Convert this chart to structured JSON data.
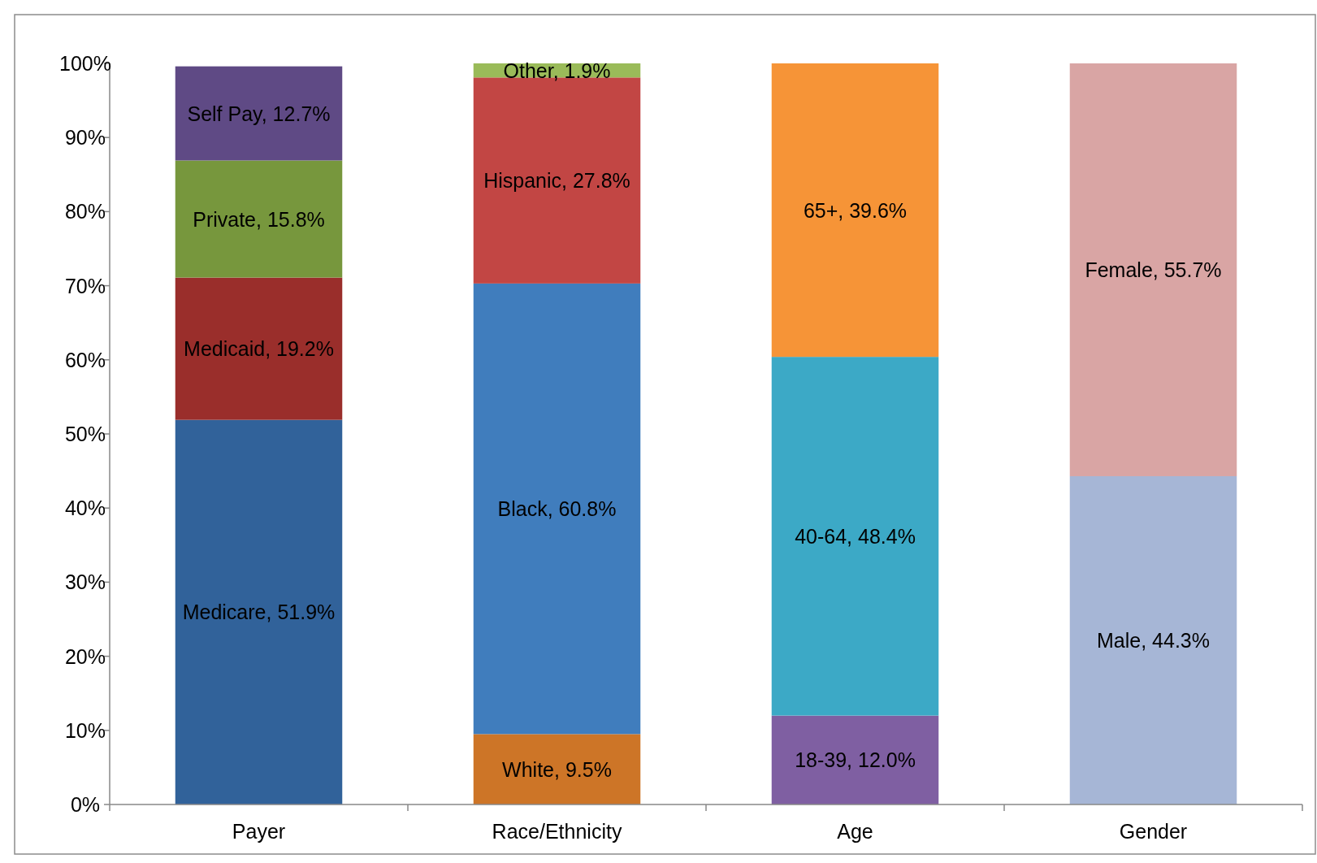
{
  "chart_data": {
    "type": "bar",
    "stacked": true,
    "categories": [
      "Payer",
      "Race/Ethnicity",
      "Age",
      "Gender"
    ],
    "ylim": [
      0,
      100
    ],
    "yticks": [
      {
        "value": 0,
        "label": "0%"
      },
      {
        "value": 10,
        "label": "10%"
      },
      {
        "value": 20,
        "label": "20%"
      },
      {
        "value": 30,
        "label": "30%"
      },
      {
        "value": 40,
        "label": "40%"
      },
      {
        "value": 50,
        "label": "50%"
      },
      {
        "value": 60,
        "label": "60%"
      },
      {
        "value": 70,
        "label": "70%"
      },
      {
        "value": 80,
        "label": "80%"
      },
      {
        "value": 90,
        "label": "90%"
      },
      {
        "value": 100,
        "label": "100%"
      }
    ],
    "grid": false,
    "series": [
      {
        "color": "#31629a",
        "values": [
          51.9,
          null,
          null,
          null
        ],
        "value_labels": [
          "Medicare, 51.9%",
          null,
          null,
          null
        ]
      },
      {
        "color": "#9a2e2b",
        "values": [
          19.2,
          null,
          null,
          null
        ],
        "value_labels": [
          "Medicaid, 19.2%",
          null,
          null,
          null
        ]
      },
      {
        "color": "#77973d",
        "values": [
          15.8,
          null,
          null,
          null
        ],
        "value_labels": [
          "Private, 15.8%",
          null,
          null,
          null
        ]
      },
      {
        "color": "#5f4a85",
        "values": [
          12.7,
          null,
          null,
          null
        ],
        "value_labels": [
          "Self Pay, 12.7%",
          null,
          null,
          null
        ]
      },
      {
        "color": "#cd7527",
        "values": [
          null,
          9.5,
          null,
          null
        ],
        "value_labels": [
          null,
          "White, 9.5%",
          null,
          null
        ]
      },
      {
        "color": "#407dbd",
        "values": [
          null,
          60.8,
          null,
          null
        ],
        "value_labels": [
          null,
          "Black, 60.8%",
          null,
          null
        ]
      },
      {
        "color": "#c24644",
        "values": [
          null,
          27.8,
          null,
          null
        ],
        "value_labels": [
          null,
          "Hispanic, 27.8%",
          null,
          null
        ]
      },
      {
        "color": "#9abb59",
        "values": [
          null,
          1.9,
          null,
          null
        ],
        "value_labels": [
          null,
          "Other, 1.9%",
          null,
          null
        ]
      },
      {
        "color": "#7f5fa2",
        "values": [
          null,
          null,
          12.0,
          null
        ],
        "value_labels": [
          null,
          null,
          "18-39, 12.0%",
          null
        ]
      },
      {
        "color": "#3ca9c6",
        "values": [
          null,
          null,
          48.4,
          null
        ],
        "value_labels": [
          null,
          null,
          "40-64, 48.4%",
          null
        ]
      },
      {
        "color": "#f69437",
        "values": [
          null,
          null,
          39.6,
          null
        ],
        "value_labels": [
          null,
          null,
          "65+, 39.6%",
          null
        ]
      },
      {
        "color": "#a6b6d6",
        "values": [
          null,
          null,
          null,
          44.3
        ],
        "value_labels": [
          null,
          null,
          null,
          "Male, 44.3%"
        ]
      },
      {
        "color": "#d9a5a4",
        "values": [
          null,
          null,
          null,
          55.7
        ],
        "value_labels": [
          null,
          null,
          null,
          "Female, 55.7%"
        ]
      }
    ]
  }
}
